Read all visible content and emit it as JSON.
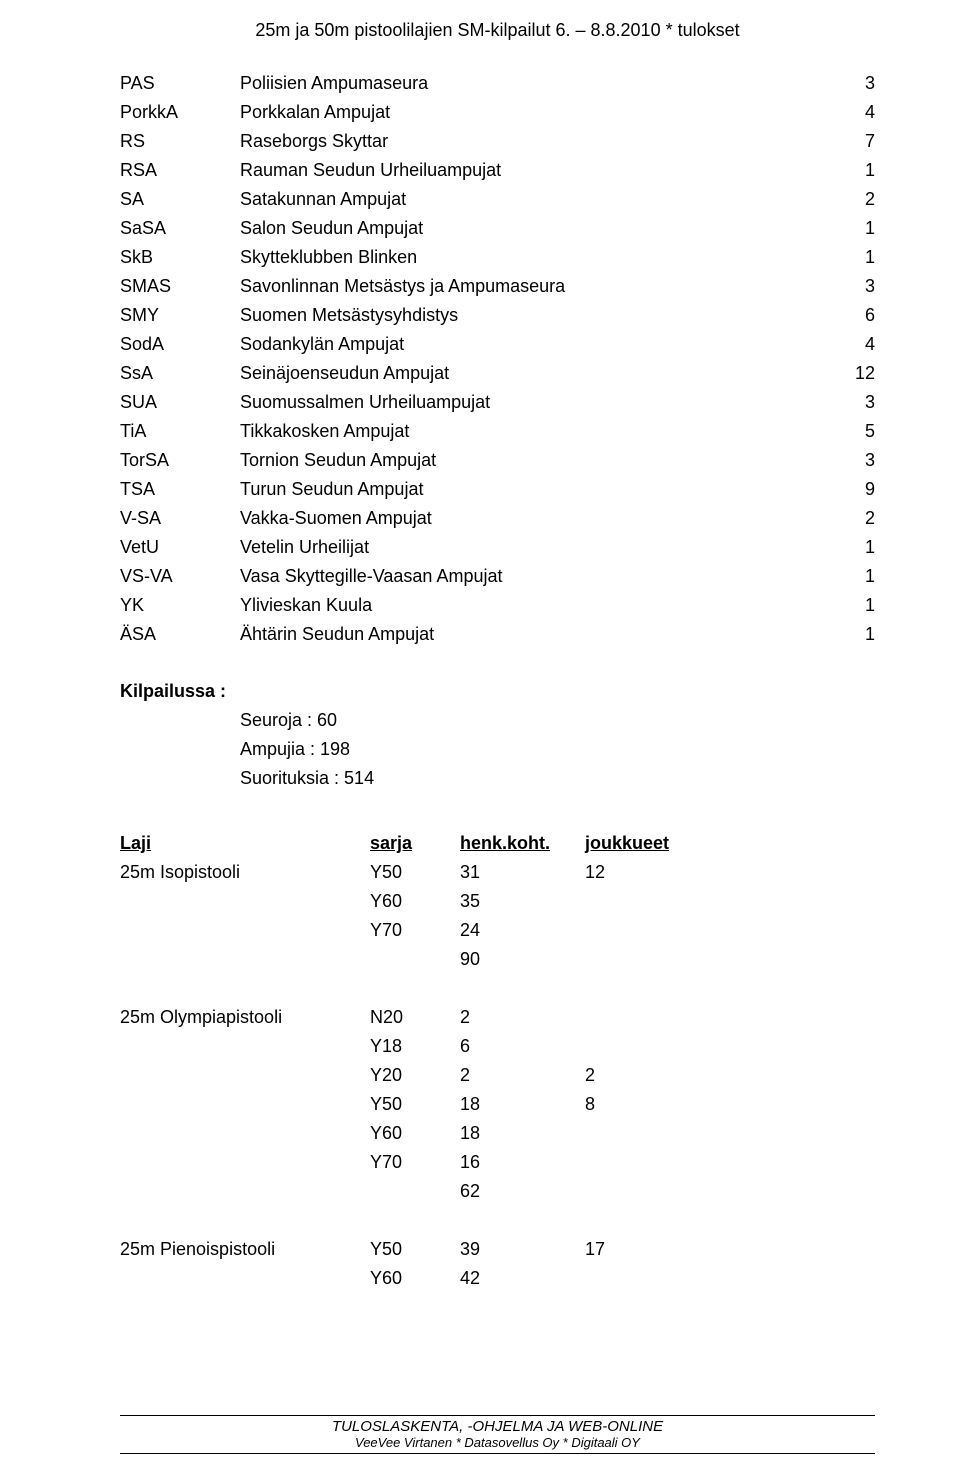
{
  "header": {
    "title": "25m ja 50m  pistoolilajien SM-kilpailut 6. – 8.8.2010 * tulokset"
  },
  "clubs": [
    {
      "code": "PAS",
      "name": "Poliisien Ampumaseura",
      "count": "3"
    },
    {
      "code": "PorkkA",
      "name": "Porkkalan Ampujat",
      "count": "4"
    },
    {
      "code": "RS",
      "name": "Raseborgs Skyttar",
      "count": "7"
    },
    {
      "code": "RSA",
      "name": "Rauman Seudun Urheiluampujat",
      "count": "1"
    },
    {
      "code": "SA",
      "name": "Satakunnan Ampujat",
      "count": "2"
    },
    {
      "code": "SaSA",
      "name": "Salon Seudun Ampujat",
      "count": "1"
    },
    {
      "code": "SkB",
      "name": "Skytteklubben Blinken",
      "count": "1"
    },
    {
      "code": "SMAS",
      "name": "Savonlinnan Metsästys ja Ampumaseura",
      "count": "3"
    },
    {
      "code": "SMY",
      "name": "Suomen Metsästysyhdistys",
      "count": "6"
    },
    {
      "code": "SodA",
      "name": "Sodankylän Ampujat",
      "count": "4"
    },
    {
      "code": "SsA",
      "name": "Seinäjoenseudun Ampujat",
      "count": "12"
    },
    {
      "code": "SUA",
      "name": "Suomussalmen Urheiluampujat",
      "count": "3"
    },
    {
      "code": "TiA",
      "name": "Tikkakosken Ampujat",
      "count": "5"
    },
    {
      "code": "TorSA",
      "name": "Tornion Seudun Ampujat",
      "count": "3"
    },
    {
      "code": "TSA",
      "name": "Turun Seudun Ampujat",
      "count": "9"
    },
    {
      "code": "V-SA",
      "name": "Vakka-Suomen Ampujat",
      "count": "2"
    },
    {
      "code": "VetU",
      "name": "Vetelin Urheilijat",
      "count": "1"
    },
    {
      "code": "VS-VA",
      "name": "Vasa Skyttegille-Vaasan Ampujat",
      "count": "1"
    },
    {
      "code": "YK",
      "name": "Ylivieskan Kuula",
      "count": "1"
    },
    {
      "code": "ÄSA",
      "name": "Ähtärin Seudun Ampujat",
      "count": "1"
    }
  ],
  "kilpailussa": {
    "label": "Kilpailussa :",
    "lines": [
      "Seuroja : 60",
      "Ampujia : 198",
      "Suorituksia : 514"
    ]
  },
  "laji_header": {
    "c1": "Laji",
    "c2": "sarja",
    "c3": "henk.koht.",
    "c4": "joukkueet"
  },
  "events": [
    {
      "name": "25m Isopistooli",
      "rows": [
        {
          "sarja": "Y50",
          "hk": "31",
          "jk": "12"
        },
        {
          "sarja": "Y60",
          "hk": "35",
          "jk": ""
        },
        {
          "sarja": "Y70",
          "hk": "24",
          "jk": ""
        },
        {
          "sarja": "",
          "hk": "90",
          "jk": ""
        }
      ]
    },
    {
      "name": "25m Olympiapistooli",
      "rows": [
        {
          "sarja": "N20",
          "hk": "2",
          "jk": ""
        },
        {
          "sarja": "Y18",
          "hk": "6",
          "jk": ""
        },
        {
          "sarja": "Y20",
          "hk": "2",
          "jk": "2"
        },
        {
          "sarja": "Y50",
          "hk": "18",
          "jk": "8"
        },
        {
          "sarja": "Y60",
          "hk": "18",
          "jk": ""
        },
        {
          "sarja": "Y70",
          "hk": "16",
          "jk": ""
        },
        {
          "sarja": "",
          "hk": "62",
          "jk": ""
        }
      ]
    },
    {
      "name": "25m Pienoispistooli",
      "rows": [
        {
          "sarja": "Y50",
          "hk": "39",
          "jk": "17"
        },
        {
          "sarja": "Y60",
          "hk": "42",
          "jk": ""
        }
      ]
    }
  ],
  "footer": {
    "line1": "TULOSLASKENTA, -OHJELMA JA WEB-ONLINE",
    "line2": "VeeVee Virtanen * Datasovellus Oy * Digitaali OY"
  }
}
